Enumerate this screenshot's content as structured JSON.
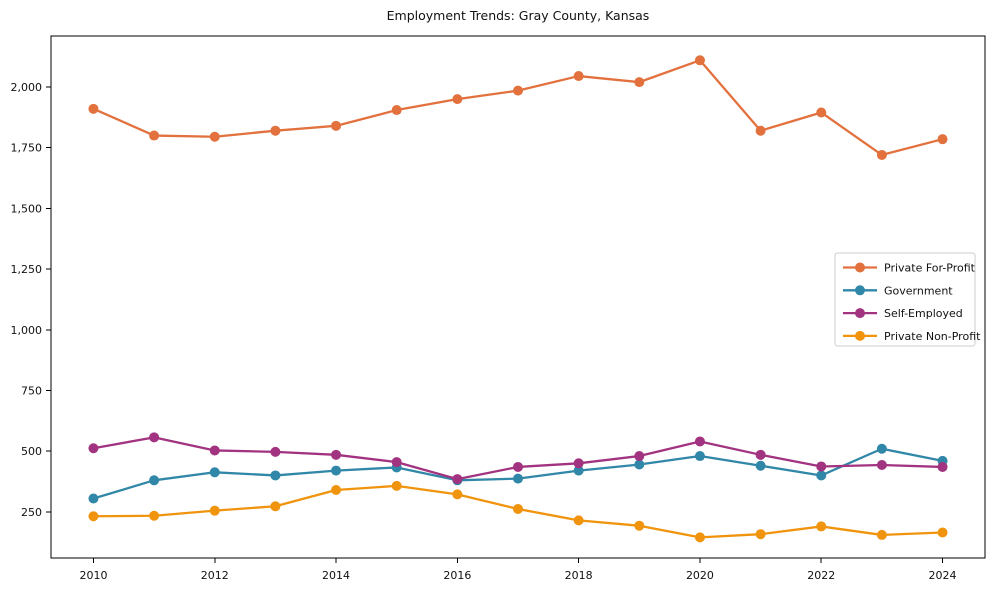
{
  "chart_data": {
    "type": "line",
    "title": "Employment Trends: Gray County, Kansas",
    "xlabel": "",
    "ylabel": "",
    "x": [
      2010,
      2011,
      2012,
      2013,
      2014,
      2015,
      2016,
      2017,
      2018,
      2019,
      2020,
      2021,
      2022,
      2023,
      2024
    ],
    "series": [
      {
        "name": "Private For-Profit",
        "color": "#E2713D",
        "values": [
          1910,
          1800,
          1795,
          1820,
          1840,
          1905,
          1950,
          1985,
          2045,
          2020,
          2110,
          1820,
          1895,
          1720,
          1785
        ]
      },
      {
        "name": "Government",
        "color": "#3187A8",
        "values": [
          305,
          380,
          413,
          400,
          420,
          433,
          380,
          387,
          420,
          445,
          480,
          440,
          400,
          510,
          460
        ]
      },
      {
        "name": "Self-Employed",
        "color": "#A23380",
        "values": [
          512,
          557,
          503,
          497,
          485,
          455,
          385,
          435,
          450,
          480,
          540,
          485,
          437,
          443,
          435
        ]
      },
      {
        "name": "Private Non-Profit",
        "color": "#F0940E",
        "values": [
          232,
          234,
          255,
          273,
          340,
          357,
          322,
          262,
          215,
          193,
          145,
          158,
          190,
          155,
          165
        ]
      }
    ],
    "xticks": [
      2010,
      2012,
      2014,
      2016,
      2018,
      2020,
      2022,
      2024
    ],
    "xtick_labels": [
      "2010",
      "2012",
      "2014",
      "2016",
      "2018",
      "2020",
      "2022",
      "2024"
    ],
    "yticks": [
      250,
      500,
      750,
      1000,
      1250,
      1500,
      1750,
      2000
    ],
    "ytick_labels": [
      "250",
      "500",
      "750",
      "1,000",
      "1,250",
      "1,500",
      "1,750",
      "2,000"
    ],
    "xlim": [
      2009.3,
      2024.7
    ],
    "ylim": [
      60,
      2210
    ],
    "grid": false,
    "legend_position": "center right",
    "marker": "circle",
    "colors": {
      "spine": "#000000",
      "tick": "#000000",
      "legend_border": "#CCCCCC",
      "legend_bg": "#FFFFFF",
      "background": "#FFFFFF"
    }
  }
}
